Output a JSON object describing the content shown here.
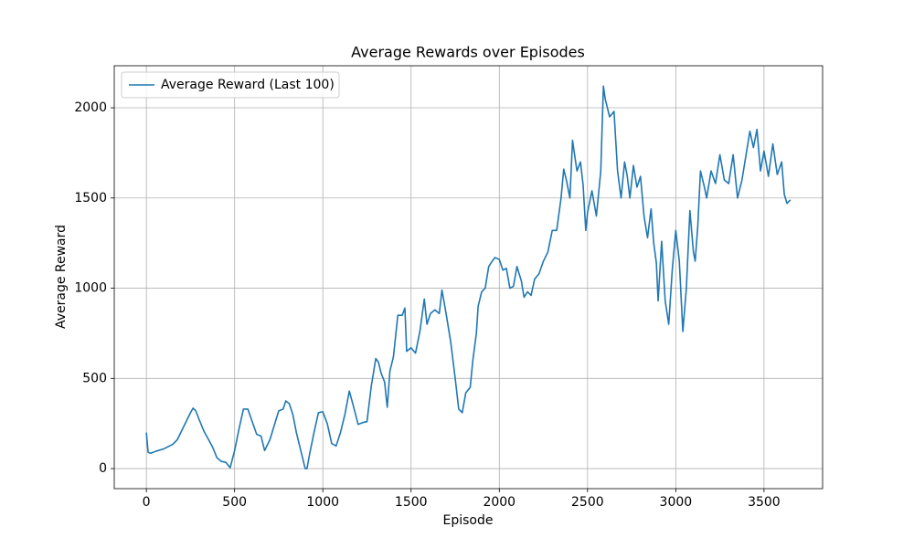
{
  "chart_data": {
    "type": "line",
    "title": "Average Rewards over Episodes",
    "xlabel": "Episode",
    "ylabel": "Average Reward",
    "xlim": [
      -182,
      3832
    ],
    "ylim": [
      -111,
      2233
    ],
    "xticks": [
      0,
      500,
      1000,
      1500,
      2000,
      2500,
      3000,
      3500
    ],
    "yticks": [
      0,
      500,
      1000,
      1500,
      2000
    ],
    "grid": true,
    "legend": "upper left",
    "x": [
      0,
      10,
      25,
      50,
      100,
      150,
      175,
      200,
      225,
      250,
      265,
      280,
      300,
      325,
      350,
      375,
      400,
      425,
      450,
      475,
      500,
      525,
      550,
      575,
      600,
      625,
      650,
      670,
      700,
      725,
      750,
      775,
      790,
      810,
      830,
      850,
      875,
      900,
      910,
      925,
      950,
      975,
      1000,
      1025,
      1050,
      1075,
      1100,
      1125,
      1150,
      1175,
      1200,
      1225,
      1250,
      1275,
      1300,
      1315,
      1330,
      1350,
      1365,
      1380,
      1400,
      1425,
      1450,
      1465,
      1475,
      1500,
      1525,
      1550,
      1575,
      1590,
      1610,
      1635,
      1660,
      1675,
      1700,
      1725,
      1750,
      1770,
      1790,
      1810,
      1835,
      1850,
      1870,
      1880,
      1900,
      1920,
      1940,
      1960,
      1975,
      2000,
      2020,
      2040,
      2060,
      2080,
      2100,
      2125,
      2140,
      2160,
      2180,
      2200,
      2225,
      2250,
      2275,
      2300,
      2325,
      2350,
      2365,
      2380,
      2400,
      2415,
      2425,
      2440,
      2460,
      2475,
      2490,
      2500,
      2525,
      2550,
      2575,
      2590,
      2600,
      2625,
      2650,
      2670,
      2690,
      2710,
      2725,
      2740,
      2760,
      2780,
      2800,
      2820,
      2840,
      2860,
      2875,
      2890,
      2900,
      2920,
      2940,
      2960,
      2980,
      3000,
      3020,
      3040,
      3060,
      3080,
      3100,
      3110,
      3125,
      3140,
      3160,
      3175,
      3200,
      3225,
      3250,
      3275,
      3300,
      3325,
      3350,
      3375,
      3400,
      3420,
      3440,
      3460,
      3480,
      3500,
      3525,
      3550,
      3575,
      3600,
      3615,
      3630,
      3650
    ],
    "series": [
      {
        "name": "Average Reward (Last 100)",
        "color": "#1f77b4",
        "values": [
          200,
          90,
          85,
          95,
          110,
          135,
          160,
          210,
          260,
          310,
          335,
          320,
          270,
          210,
          165,
          120,
          60,
          40,
          35,
          5,
          100,
          220,
          330,
          330,
          260,
          190,
          180,
          100,
          160,
          240,
          320,
          330,
          375,
          360,
          300,
          200,
          100,
          0,
          0,
          80,
          200,
          310,
          315,
          250,
          140,
          125,
          200,
          300,
          430,
          340,
          245,
          255,
          260,
          460,
          610,
          590,
          530,
          480,
          340,
          540,
          620,
          850,
          850,
          890,
          650,
          670,
          640,
          760,
          940,
          800,
          860,
          880,
          860,
          990,
          850,
          700,
          500,
          330,
          310,
          420,
          450,
          600,
          750,
          900,
          980,
          1000,
          1120,
          1150,
          1170,
          1160,
          1100,
          1110,
          1000,
          1010,
          1120,
          1040,
          950,
          980,
          960,
          1050,
          1080,
          1150,
          1200,
          1320,
          1320,
          1500,
          1660,
          1600,
          1500,
          1820,
          1750,
          1650,
          1700,
          1570,
          1320,
          1420,
          1540,
          1400,
          1650,
          2120,
          2050,
          1950,
          1980,
          1650,
          1500,
          1700,
          1620,
          1500,
          1680,
          1560,
          1620,
          1400,
          1280,
          1440,
          1250,
          1140,
          930,
          1260,
          930,
          800,
          1100,
          1320,
          1150,
          760,
          1000,
          1430,
          1200,
          1150,
          1350,
          1650,
          1570,
          1500,
          1650,
          1580,
          1740,
          1600,
          1580,
          1740,
          1500,
          1600,
          1750,
          1870,
          1780,
          1880,
          1650,
          1760,
          1620,
          1800,
          1630,
          1700,
          1520,
          1470,
          1490
        ]
      }
    ]
  }
}
